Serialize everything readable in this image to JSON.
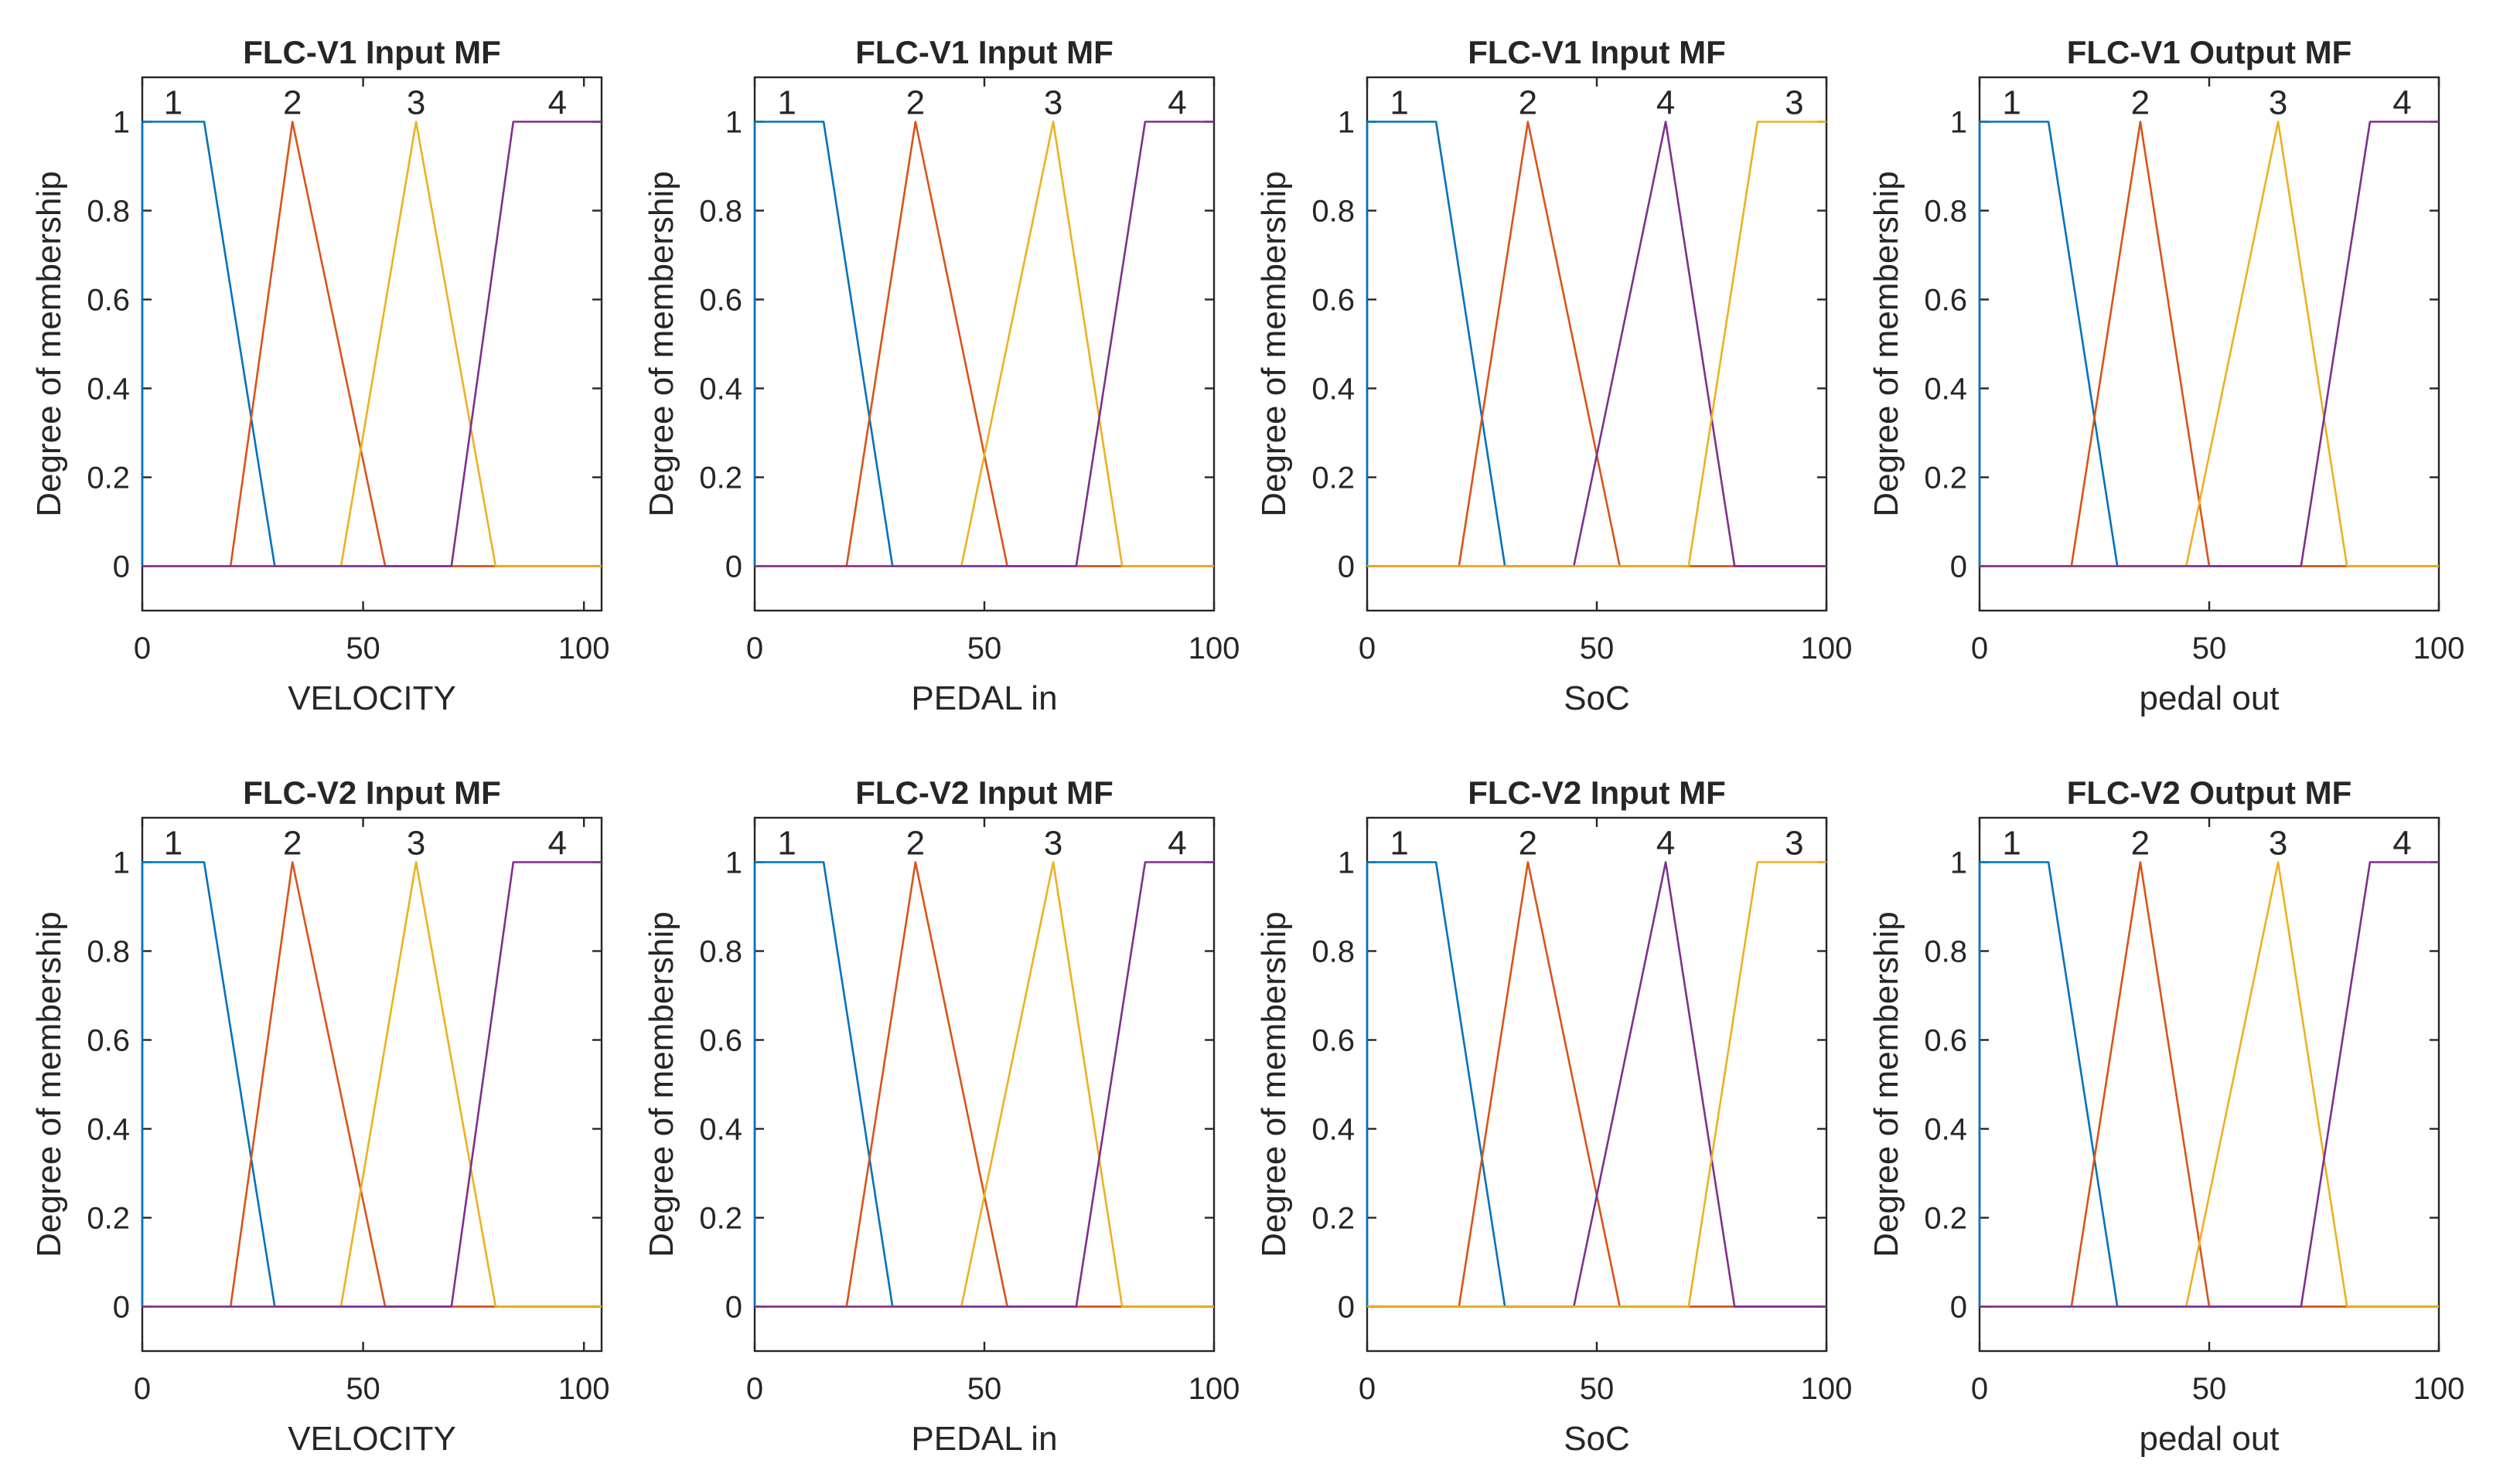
{
  "chart_data": [
    {
      "type": "line",
      "title": "FLC-V1 Input MF",
      "xlabel": "VELOCITY",
      "ylabel": "Degree of membership",
      "xlim": [
        0,
        104
      ],
      "ylim": [
        -0.1,
        1.1
      ],
      "xticks": [
        0,
        50,
        100
      ],
      "yticks": [
        0,
        0.2,
        0.4,
        0.6,
        0.8,
        1
      ],
      "series": [
        {
          "name": "1",
          "color": "#0072BD",
          "x": [
            0,
            0,
            14,
            30,
            104
          ],
          "y": [
            0,
            1,
            1,
            0,
            0
          ]
        },
        {
          "name": "2",
          "color": "#D95319",
          "x": [
            0,
            20,
            34,
            55,
            104
          ],
          "y": [
            0,
            0,
            1,
            0,
            0
          ]
        },
        {
          "name": "3",
          "color": "#EDB120",
          "x": [
            0,
            45,
            62,
            80,
            104
          ],
          "y": [
            0,
            0,
            1,
            0,
            0
          ]
        },
        {
          "name": "4",
          "color": "#7E2F8E",
          "x": [
            0,
            70,
            84,
            104
          ],
          "y": [
            0,
            0,
            1,
            1
          ]
        }
      ],
      "mf_labels": [
        {
          "text": "1",
          "x": 7
        },
        {
          "text": "2",
          "x": 34
        },
        {
          "text": "3",
          "x": 62
        },
        {
          "text": "4",
          "x": 94
        }
      ]
    },
    {
      "type": "line",
      "title": "FLC-V1 Input MF",
      "xlabel": "PEDAL in",
      "ylabel": "Degree of membership",
      "xlim": [
        0,
        100
      ],
      "ylim": [
        -0.1,
        1.1
      ],
      "xticks": [
        0,
        50,
        100
      ],
      "yticks": [
        0,
        0.2,
        0.4,
        0.6,
        0.8,
        1
      ],
      "series": [
        {
          "name": "1",
          "color": "#0072BD",
          "x": [
            0,
            0,
            15,
            30,
            100
          ],
          "y": [
            0,
            1,
            1,
            0,
            0
          ]
        },
        {
          "name": "2",
          "color": "#D95319",
          "x": [
            0,
            20,
            35,
            55,
            100
          ],
          "y": [
            0,
            0,
            1,
            0,
            0
          ]
        },
        {
          "name": "3",
          "color": "#EDB120",
          "x": [
            0,
            45,
            65,
            80,
            100
          ],
          "y": [
            0,
            0,
            1,
            0,
            0
          ]
        },
        {
          "name": "4",
          "color": "#7E2F8E",
          "x": [
            0,
            70,
            85,
            100
          ],
          "y": [
            0,
            0,
            1,
            1
          ]
        }
      ],
      "mf_labels": [
        {
          "text": "1",
          "x": 7
        },
        {
          "text": "2",
          "x": 35
        },
        {
          "text": "3",
          "x": 65
        },
        {
          "text": "4",
          "x": 92
        }
      ]
    },
    {
      "type": "line",
      "title": "FLC-V1 Input MF",
      "xlabel": "SoC",
      "ylabel": "Degree of membership",
      "xlim": [
        0,
        100
      ],
      "ylim": [
        -0.1,
        1.1
      ],
      "xticks": [
        0,
        50,
        100
      ],
      "yticks": [
        0,
        0.2,
        0.4,
        0.6,
        0.8,
        1
      ],
      "series": [
        {
          "name": "1",
          "color": "#0072BD",
          "x": [
            0,
            0,
            15,
            30,
            100
          ],
          "y": [
            0,
            1,
            1,
            0,
            0
          ]
        },
        {
          "name": "2",
          "color": "#D95319",
          "x": [
            0,
            20,
            35,
            55,
            100
          ],
          "y": [
            0,
            0,
            1,
            0,
            0
          ]
        },
        {
          "name": "4",
          "color": "#7E2F8E",
          "x": [
            0,
            45,
            65,
            80,
            100
          ],
          "y": [
            0,
            0,
            1,
            0,
            0
          ]
        },
        {
          "name": "3",
          "color": "#EDB120",
          "x": [
            0,
            70,
            85,
            100
          ],
          "y": [
            0,
            0,
            1,
            1
          ]
        }
      ],
      "mf_labels": [
        {
          "text": "1",
          "x": 7
        },
        {
          "text": "2",
          "x": 35
        },
        {
          "text": "4",
          "x": 65
        },
        {
          "text": "3",
          "x": 93
        }
      ]
    },
    {
      "type": "line",
      "title": "FLC-V1 Output MF",
      "xlabel": "pedal out",
      "ylabel": "Degree of membership",
      "xlim": [
        0,
        100
      ],
      "ylim": [
        -0.1,
        1.1
      ],
      "xticks": [
        0,
        50,
        100
      ],
      "yticks": [
        0,
        0.2,
        0.4,
        0.6,
        0.8,
        1
      ],
      "series": [
        {
          "name": "1",
          "color": "#0072BD",
          "x": [
            0,
            0,
            15,
            30,
            100
          ],
          "y": [
            0,
            1,
            1,
            0,
            0
          ]
        },
        {
          "name": "2",
          "color": "#D95319",
          "x": [
            0,
            20,
            35,
            50,
            100
          ],
          "y": [
            0,
            0,
            1,
            0,
            0
          ]
        },
        {
          "name": "3",
          "color": "#EDB120",
          "x": [
            0,
            45,
            65,
            80,
            100
          ],
          "y": [
            0,
            0,
            1,
            0,
            0
          ]
        },
        {
          "name": "4",
          "color": "#7E2F8E",
          "x": [
            0,
            70,
            85,
            100
          ],
          "y": [
            0,
            0,
            1,
            1
          ]
        }
      ],
      "mf_labels": [
        {
          "text": "1",
          "x": 7
        },
        {
          "text": "2",
          "x": 35
        },
        {
          "text": "3",
          "x": 65
        },
        {
          "text": "4",
          "x": 92
        }
      ]
    },
    {
      "type": "line",
      "title": "FLC-V2 Input MF",
      "xlabel": "VELOCITY",
      "ylabel": "Degree of membership",
      "xlim": [
        0,
        104
      ],
      "ylim": [
        -0.1,
        1.1
      ],
      "xticks": [
        0,
        50,
        100
      ],
      "yticks": [
        0,
        0.2,
        0.4,
        0.6,
        0.8,
        1
      ],
      "series": [
        {
          "name": "1",
          "color": "#0072BD",
          "x": [
            0,
            0,
            14,
            30,
            104
          ],
          "y": [
            0,
            1,
            1,
            0,
            0
          ]
        },
        {
          "name": "2",
          "color": "#D95319",
          "x": [
            0,
            20,
            34,
            55,
            104
          ],
          "y": [
            0,
            0,
            1,
            0,
            0
          ]
        },
        {
          "name": "3",
          "color": "#EDB120",
          "x": [
            0,
            45,
            62,
            80,
            104
          ],
          "y": [
            0,
            0,
            1,
            0,
            0
          ]
        },
        {
          "name": "4",
          "color": "#7E2F8E",
          "x": [
            0,
            70,
            84,
            104
          ],
          "y": [
            0,
            0,
            1,
            1
          ]
        }
      ],
      "mf_labels": [
        {
          "text": "1",
          "x": 7
        },
        {
          "text": "2",
          "x": 34
        },
        {
          "text": "3",
          "x": 62
        },
        {
          "text": "4",
          "x": 94
        }
      ]
    },
    {
      "type": "line",
      "title": "FLC-V2 Input MF",
      "xlabel": "PEDAL in",
      "ylabel": "Degree of membership",
      "xlim": [
        0,
        100
      ],
      "ylim": [
        -0.1,
        1.1
      ],
      "xticks": [
        0,
        50,
        100
      ],
      "yticks": [
        0,
        0.2,
        0.4,
        0.6,
        0.8,
        1
      ],
      "series": [
        {
          "name": "1",
          "color": "#0072BD",
          "x": [
            0,
            0,
            15,
            30,
            100
          ],
          "y": [
            0,
            1,
            1,
            0,
            0
          ]
        },
        {
          "name": "2",
          "color": "#D95319",
          "x": [
            0,
            20,
            35,
            55,
            100
          ],
          "y": [
            0,
            0,
            1,
            0,
            0
          ]
        },
        {
          "name": "3",
          "color": "#EDB120",
          "x": [
            0,
            45,
            65,
            80,
            100
          ],
          "y": [
            0,
            0,
            1,
            0,
            0
          ]
        },
        {
          "name": "4",
          "color": "#7E2F8E",
          "x": [
            0,
            70,
            85,
            100
          ],
          "y": [
            0,
            0,
            1,
            1
          ]
        }
      ],
      "mf_labels": [
        {
          "text": "1",
          "x": 7
        },
        {
          "text": "2",
          "x": 35
        },
        {
          "text": "3",
          "x": 65
        },
        {
          "text": "4",
          "x": 92
        }
      ]
    },
    {
      "type": "line",
      "title": "FLC-V2 Input MF",
      "xlabel": "SoC",
      "ylabel": "Degree of membership",
      "xlim": [
        0,
        100
      ],
      "ylim": [
        -0.1,
        1.1
      ],
      "xticks": [
        0,
        50,
        100
      ],
      "yticks": [
        0,
        0.2,
        0.4,
        0.6,
        0.8,
        1
      ],
      "series": [
        {
          "name": "1",
          "color": "#0072BD",
          "x": [
            0,
            0,
            15,
            30,
            100
          ],
          "y": [
            0,
            1,
            1,
            0,
            0
          ]
        },
        {
          "name": "2",
          "color": "#D95319",
          "x": [
            0,
            20,
            35,
            55,
            100
          ],
          "y": [
            0,
            0,
            1,
            0,
            0
          ]
        },
        {
          "name": "4",
          "color": "#7E2F8E",
          "x": [
            0,
            45,
            65,
            80,
            100
          ],
          "y": [
            0,
            0,
            1,
            0,
            0
          ]
        },
        {
          "name": "3",
          "color": "#EDB120",
          "x": [
            0,
            70,
            85,
            100
          ],
          "y": [
            0,
            0,
            1,
            1
          ]
        }
      ],
      "mf_labels": [
        {
          "text": "1",
          "x": 7
        },
        {
          "text": "2",
          "x": 35
        },
        {
          "text": "4",
          "x": 65
        },
        {
          "text": "3",
          "x": 93
        }
      ]
    },
    {
      "type": "line",
      "title": "FLC-V2 Output MF",
      "xlabel": "pedal out",
      "ylabel": "Degree of membership",
      "xlim": [
        0,
        100
      ],
      "ylim": [
        -0.1,
        1.1
      ],
      "xticks": [
        0,
        50,
        100
      ],
      "yticks": [
        0,
        0.2,
        0.4,
        0.6,
        0.8,
        1
      ],
      "series": [
        {
          "name": "1",
          "color": "#0072BD",
          "x": [
            0,
            0,
            15,
            30,
            100
          ],
          "y": [
            0,
            1,
            1,
            0,
            0
          ]
        },
        {
          "name": "2",
          "color": "#D95319",
          "x": [
            0,
            20,
            35,
            50,
            100
          ],
          "y": [
            0,
            0,
            1,
            0,
            0
          ]
        },
        {
          "name": "3",
          "color": "#EDB120",
          "x": [
            0,
            45,
            65,
            80,
            100
          ],
          "y": [
            0,
            0,
            1,
            0,
            0
          ]
        },
        {
          "name": "4",
          "color": "#7E2F8E",
          "x": [
            0,
            70,
            85,
            100
          ],
          "y": [
            0,
            0,
            1,
            1
          ]
        }
      ],
      "mf_labels": [
        {
          "text": "1",
          "x": 7
        },
        {
          "text": "2",
          "x": 35
        },
        {
          "text": "3",
          "x": 65
        },
        {
          "text": "4",
          "x": 92
        }
      ]
    }
  ]
}
